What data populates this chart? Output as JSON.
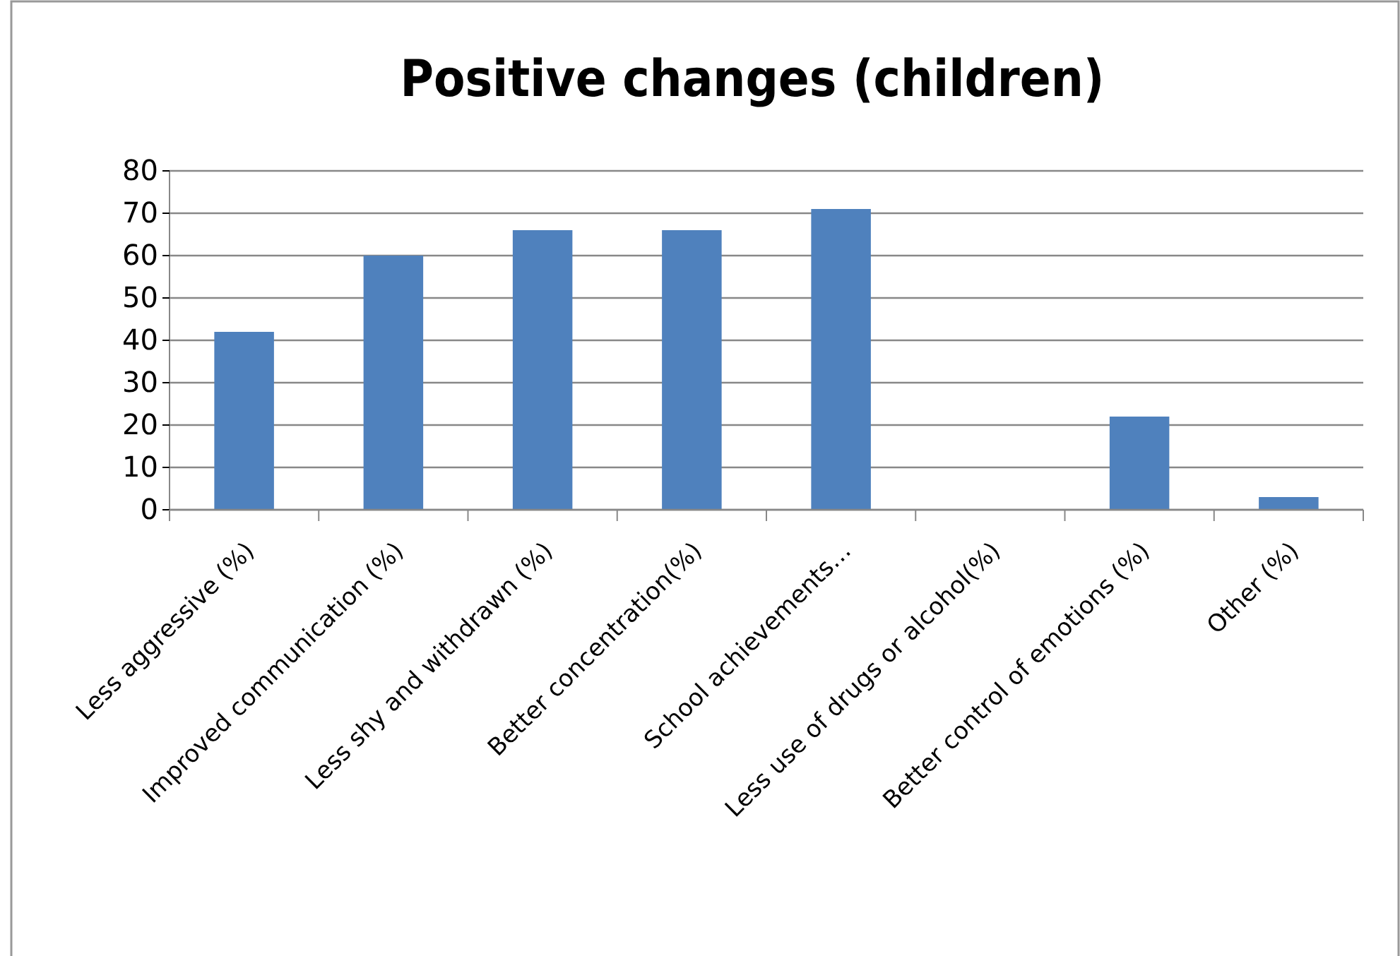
{
  "chart_data": {
    "type": "bar",
    "title": "Positive changes (children)",
    "categories": [
      "Less aggressive (%)",
      "Improved communication (%)",
      "Less shy and withdrawn (%)",
      "Better concentration(%)",
      "School achievements…",
      "Less use of drugs or alcohol(%)",
      "Better control of emotions (%)",
      "Other (%)"
    ],
    "values": [
      42,
      60,
      66,
      66,
      71,
      0,
      22,
      3
    ],
    "color": "#4f81bd",
    "ylim": [
      0,
      80
    ],
    "yticks": [
      0,
      10,
      20,
      30,
      40,
      50,
      60,
      70,
      80
    ],
    "grid": "y"
  }
}
